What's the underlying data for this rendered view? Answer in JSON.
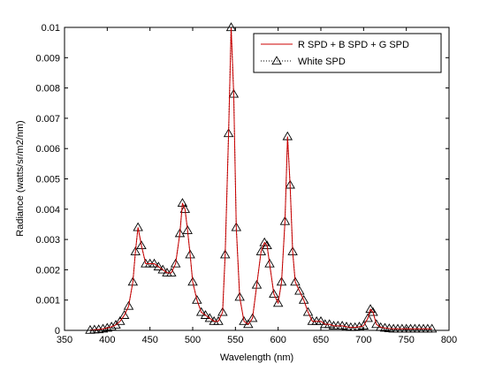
{
  "chart_data": {
    "type": "line",
    "title": "",
    "xlabel": "Wavelength (nm)",
    "ylabel": "Radiance (watts/sr/m2/nm)",
    "xlim": [
      350,
      800
    ],
    "ylim": [
      0,
      0.01
    ],
    "xticks": [
      350,
      400,
      450,
      500,
      550,
      600,
      650,
      700,
      750,
      800
    ],
    "xtick_labels": [
      "350",
      "400",
      "450",
      "500",
      "550",
      "600",
      "650",
      "700",
      "750",
      "800"
    ],
    "yticks": [
      0,
      0.001,
      0.002,
      0.003,
      0.004,
      0.005,
      0.006,
      0.007,
      0.008,
      0.009,
      0.01
    ],
    "ytick_labels": [
      "0",
      "0.001",
      "0.002",
      "0.003",
      "0.004",
      "0.005",
      "0.006",
      "0.007",
      "0.008",
      "0.009",
      "0.01"
    ],
    "grid": false,
    "legend_position": "top-right",
    "series": [
      {
        "name": "R SPD + B SPD + G SPD",
        "color": "#cc0000",
        "style": "solid",
        "x": [
          380,
          385,
          390,
          395,
          400,
          405,
          410,
          415,
          420,
          425,
          430,
          433,
          436,
          440,
          445,
          450,
          455,
          460,
          465,
          470,
          475,
          480,
          485,
          488,
          491,
          494,
          497,
          500,
          505,
          510,
          515,
          520,
          525,
          530,
          535,
          538,
          542,
          545,
          548,
          551,
          555,
          560,
          565,
          570,
          575,
          580,
          584,
          587,
          590,
          595,
          600,
          604,
          608,
          611,
          614,
          617,
          620,
          625,
          630,
          635,
          640,
          645,
          650,
          655,
          660,
          665,
          670,
          675,
          680,
          685,
          690,
          695,
          700,
          705,
          708,
          711,
          715,
          720,
          725,
          730,
          735,
          740,
          745,
          750,
          755,
          760,
          765,
          770,
          775,
          780
        ],
        "values": [
          1e-05,
          2e-05,
          3e-05,
          5e-05,
          8e-05,
          0.00012,
          0.00018,
          0.0003,
          0.0005,
          0.0008,
          0.0016,
          0.0026,
          0.0034,
          0.0028,
          0.0022,
          0.0022,
          0.0022,
          0.0021,
          0.002,
          0.0019,
          0.0019,
          0.0022,
          0.0032,
          0.0042,
          0.004,
          0.0033,
          0.0025,
          0.0016,
          0.001,
          0.0006,
          0.0005,
          0.0004,
          0.0003,
          0.0003,
          0.0006,
          0.0025,
          0.0065,
          0.01,
          0.0078,
          0.0034,
          0.0011,
          0.0003,
          0.0002,
          0.0004,
          0.0015,
          0.0026,
          0.0029,
          0.0028,
          0.0022,
          0.0012,
          0.0009,
          0.0016,
          0.0036,
          0.0064,
          0.0048,
          0.0026,
          0.0016,
          0.0013,
          0.001,
          0.0006,
          0.0003,
          0.0003,
          0.0003,
          0.0002,
          0.0002,
          0.00015,
          0.00015,
          0.00015,
          0.00012,
          0.0001,
          0.0001,
          0.00012,
          0.00015,
          0.0004,
          0.0007,
          0.0006,
          0.0002,
          0.0001,
          8e-05,
          6e-05,
          5e-05,
          5e-05,
          5e-05,
          5e-05,
          5e-05,
          5e-05,
          5e-05,
          5e-05,
          5e-05,
          5e-05
        ]
      },
      {
        "name": "White SPD",
        "color": "#000000",
        "style": "dotted",
        "marker": "triangle",
        "x": [
          380,
          385,
          390,
          395,
          400,
          405,
          410,
          415,
          420,
          425,
          430,
          433,
          436,
          440,
          445,
          450,
          455,
          460,
          465,
          470,
          475,
          480,
          485,
          488,
          491,
          494,
          497,
          500,
          505,
          510,
          515,
          520,
          525,
          530,
          535,
          538,
          542,
          545,
          548,
          551,
          555,
          560,
          565,
          570,
          575,
          580,
          584,
          587,
          590,
          595,
          600,
          604,
          608,
          611,
          614,
          617,
          620,
          625,
          630,
          635,
          640,
          645,
          650,
          655,
          660,
          665,
          670,
          675,
          680,
          685,
          690,
          695,
          700,
          705,
          708,
          711,
          715,
          720,
          725,
          730,
          735,
          740,
          745,
          750,
          755,
          760,
          765,
          770,
          775,
          780
        ],
        "values": [
          1e-05,
          2e-05,
          3e-05,
          5e-05,
          8e-05,
          0.00012,
          0.00018,
          0.0003,
          0.0005,
          0.0008,
          0.0016,
          0.0026,
          0.0034,
          0.0028,
          0.0022,
          0.0022,
          0.0022,
          0.0021,
          0.002,
          0.0019,
          0.0019,
          0.0022,
          0.0032,
          0.0042,
          0.004,
          0.0033,
          0.0025,
          0.0016,
          0.001,
          0.0006,
          0.0005,
          0.0004,
          0.0003,
          0.0003,
          0.0006,
          0.0025,
          0.0065,
          0.01,
          0.0078,
          0.0034,
          0.0011,
          0.0003,
          0.0002,
          0.0004,
          0.0015,
          0.0026,
          0.0029,
          0.0028,
          0.0022,
          0.0012,
          0.0009,
          0.0016,
          0.0036,
          0.0064,
          0.0048,
          0.0026,
          0.0016,
          0.0013,
          0.001,
          0.0006,
          0.0003,
          0.0003,
          0.0003,
          0.0002,
          0.0002,
          0.00015,
          0.00015,
          0.00015,
          0.00012,
          0.0001,
          0.0001,
          0.00012,
          0.00015,
          0.0004,
          0.0007,
          0.0006,
          0.0002,
          0.0001,
          8e-05,
          6e-05,
          5e-05,
          5e-05,
          5e-05,
          5e-05,
          5e-05,
          5e-05,
          5e-05,
          5e-05,
          5e-05,
          5e-05
        ]
      }
    ]
  }
}
